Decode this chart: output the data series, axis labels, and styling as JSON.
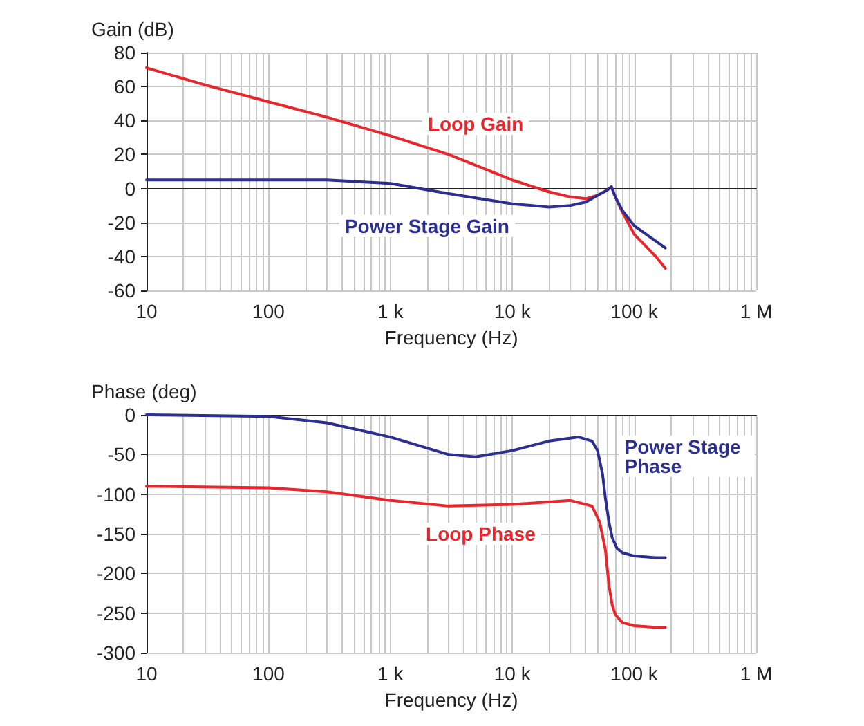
{
  "chart_data": [
    {
      "type": "line",
      "ylabel": "Gain (dB)",
      "xlabel": "Frequency (Hz)",
      "log": "x",
      "grid": true,
      "legend": false,
      "marker": "none",
      "line_style": "solid",
      "xlim": [
        10,
        1000000
      ],
      "ylim": [
        -60,
        80
      ],
      "yticks": [
        -60,
        -40,
        -20,
        0,
        20,
        40,
        60,
        80
      ],
      "xticks": [
        {
          "value": 10,
          "label": "10"
        },
        {
          "value": 20,
          "label": null
        },
        {
          "value": 30,
          "label": null
        },
        {
          "value": 40,
          "label": null
        },
        {
          "value": 50,
          "label": null
        },
        {
          "value": 60,
          "label": null
        },
        {
          "value": 70,
          "label": null
        },
        {
          "value": 80,
          "label": null
        },
        {
          "value": 90,
          "label": null
        },
        {
          "value": 100,
          "label": "100"
        },
        {
          "value": 200,
          "label": null
        },
        {
          "value": 300,
          "label": null
        },
        {
          "value": 400,
          "label": null
        },
        {
          "value": 500,
          "label": null
        },
        {
          "value": 600,
          "label": null
        },
        {
          "value": 700,
          "label": null
        },
        {
          "value": 800,
          "label": null
        },
        {
          "value": 900,
          "label": null
        },
        {
          "value": 1000,
          "label": "1 k"
        },
        {
          "value": 2000,
          "label": null
        },
        {
          "value": 3000,
          "label": null
        },
        {
          "value": 4000,
          "label": null
        },
        {
          "value": 5000,
          "label": null
        },
        {
          "value": 6000,
          "label": null
        },
        {
          "value": 7000,
          "label": null
        },
        {
          "value": 8000,
          "label": null
        },
        {
          "value": 9000,
          "label": null
        },
        {
          "value": 10000,
          "label": "10 k"
        },
        {
          "value": 20000,
          "label": null
        },
        {
          "value": 30000,
          "label": null
        },
        {
          "value": 40000,
          "label": null
        },
        {
          "value": 50000,
          "label": null
        },
        {
          "value": 60000,
          "label": null
        },
        {
          "value": 70000,
          "label": null
        },
        {
          "value": 80000,
          "label": null
        },
        {
          "value": 90000,
          "label": null
        },
        {
          "value": 100000,
          "label": "100 k"
        },
        {
          "value": 200000,
          "label": null
        },
        {
          "value": 300000,
          "label": null
        },
        {
          "value": 400000,
          "label": null
        },
        {
          "value": 500000,
          "label": null
        },
        {
          "value": 600000,
          "label": null
        },
        {
          "value": 700000,
          "label": null
        },
        {
          "value": 800000,
          "label": null
        },
        {
          "value": 900000,
          "label": null
        },
        {
          "value": 1000000,
          "label": "1 M"
        }
      ],
      "series": [
        {
          "name": "Loop Gain",
          "color": "#e8262b",
          "x": [
            10,
            30,
            100,
            300,
            1000,
            3000,
            10000,
            20000,
            30000,
            40000,
            50000,
            60000,
            65000,
            70000,
            80000,
            100000,
            150000,
            180000
          ],
          "values": [
            71,
            61,
            51,
            42,
            31,
            20,
            5,
            -2,
            -5,
            -6,
            -4,
            -1,
            1,
            -5,
            -14,
            -27,
            -40,
            -47
          ]
        },
        {
          "name": "Power Stage Gain",
          "color": "#2b2f8f",
          "x": [
            10,
            100,
            300,
            1000,
            3000,
            10000,
            20000,
            30000,
            40000,
            50000,
            60000,
            65000,
            70000,
            80000,
            100000,
            150000,
            180000
          ],
          "values": [
            5,
            5,
            5,
            3,
            -3,
            -9,
            -11,
            -10,
            -8,
            -4,
            -1,
            1,
            -5,
            -13,
            -22,
            -31,
            -35
          ]
        }
      ]
    },
    {
      "type": "line",
      "ylabel": "Phase (deg)",
      "xlabel": "Frequency (Hz)",
      "log": "x",
      "grid": true,
      "legend": false,
      "marker": "none",
      "line_style": "solid",
      "xlim": [
        10,
        1000000
      ],
      "ylim": [
        -300,
        0
      ],
      "yticks": [
        -300,
        -250,
        -200,
        -150,
        -100,
        -50,
        0
      ],
      "xticks": [
        {
          "value": 10,
          "label": "10"
        },
        {
          "value": 20,
          "label": null
        },
        {
          "value": 30,
          "label": null
        },
        {
          "value": 40,
          "label": null
        },
        {
          "value": 50,
          "label": null
        },
        {
          "value": 60,
          "label": null
        },
        {
          "value": 70,
          "label": null
        },
        {
          "value": 80,
          "label": null
        },
        {
          "value": 90,
          "label": null
        },
        {
          "value": 100,
          "label": "100"
        },
        {
          "value": 200,
          "label": null
        },
        {
          "value": 300,
          "label": null
        },
        {
          "value": 400,
          "label": null
        },
        {
          "value": 500,
          "label": null
        },
        {
          "value": 600,
          "label": null
        },
        {
          "value": 700,
          "label": null
        },
        {
          "value": 800,
          "label": null
        },
        {
          "value": 900,
          "label": null
        },
        {
          "value": 1000,
          "label": "1 k"
        },
        {
          "value": 2000,
          "label": null
        },
        {
          "value": 3000,
          "label": null
        },
        {
          "value": 4000,
          "label": null
        },
        {
          "value": 5000,
          "label": null
        },
        {
          "value": 6000,
          "label": null
        },
        {
          "value": 7000,
          "label": null
        },
        {
          "value": 8000,
          "label": null
        },
        {
          "value": 9000,
          "label": null
        },
        {
          "value": 10000,
          "label": "10 k"
        },
        {
          "value": 20000,
          "label": null
        },
        {
          "value": 30000,
          "label": null
        },
        {
          "value": 40000,
          "label": null
        },
        {
          "value": 50000,
          "label": null
        },
        {
          "value": 60000,
          "label": null
        },
        {
          "value": 70000,
          "label": null
        },
        {
          "value": 80000,
          "label": null
        },
        {
          "value": 90000,
          "label": null
        },
        {
          "value": 100000,
          "label": "100 k"
        },
        {
          "value": 200000,
          "label": null
        },
        {
          "value": 300000,
          "label": null
        },
        {
          "value": 400000,
          "label": null
        },
        {
          "value": 500000,
          "label": null
        },
        {
          "value": 600000,
          "label": null
        },
        {
          "value": 700000,
          "label": null
        },
        {
          "value": 800000,
          "label": null
        },
        {
          "value": 900000,
          "label": null
        },
        {
          "value": 1000000,
          "label": "1 M"
        }
      ],
      "series": [
        {
          "name": "Power Stage Phase",
          "color": "#2b2f8f",
          "x": [
            10,
            100,
            300,
            1000,
            3000,
            5000,
            10000,
            20000,
            35000,
            45000,
            50000,
            55000,
            58000,
            62000,
            66000,
            72000,
            80000,
            100000,
            150000,
            180000
          ],
          "values": [
            0,
            -2,
            -10,
            -28,
            -50,
            -53,
            -45,
            -33,
            -28,
            -33,
            -45,
            -75,
            -105,
            -135,
            -155,
            -168,
            -174,
            -178,
            -180,
            -180
          ]
        },
        {
          "name": "Loop Phase",
          "color": "#e8262b",
          "x": [
            10,
            100,
            300,
            1000,
            3000,
            10000,
            30000,
            45000,
            52000,
            58000,
            62000,
            66000,
            70000,
            80000,
            100000,
            150000,
            180000
          ],
          "values": [
            -90,
            -92,
            -97,
            -108,
            -115,
            -113,
            -108,
            -115,
            -135,
            -170,
            -215,
            -240,
            -252,
            -262,
            -266,
            -268,
            -268
          ]
        }
      ]
    }
  ]
}
